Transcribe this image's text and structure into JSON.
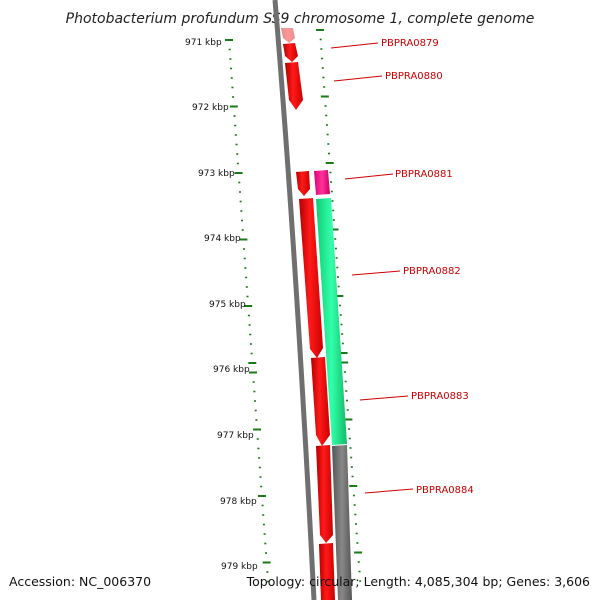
{
  "title": "Photobacterium profundum SS9 chromosome 1, complete genome",
  "footer": {
    "accession": "Accession: NC_006370",
    "summary": "Topology: circular; Length: 4,085,304 bp; Genes: 3,606"
  },
  "colors": {
    "forward_gene": "#ff0000",
    "special_gene": "#ff1f8f",
    "rrna_band": "#22ee99",
    "backbone": "#6f6f6f",
    "tick": "#1a7a1a",
    "label": "#cc0000"
  },
  "scale_labels": [
    "971 kbp",
    "972 kbp",
    "973 kbp",
    "974 kbp",
    "975 kbp",
    "976 kbp",
    "977 kbp",
    "978 kbp",
    "979 kbp"
  ],
  "gene_labels": [
    "PBPRA0879",
    "PBPRA0880",
    "PBPRA0881",
    "PBPRA0882",
    "PBPRA0883",
    "PBPRA0884"
  ]
}
